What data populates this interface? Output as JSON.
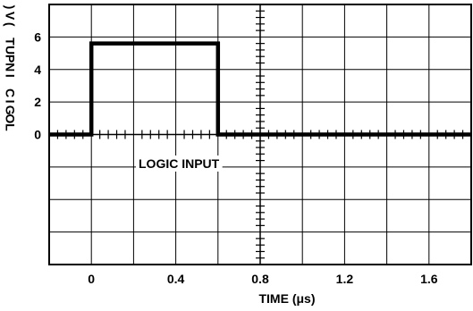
{
  "chart_data": {
    "type": "line",
    "xlabel": "TIME (μs)",
    "ylabel": "LOGIC INPUT (V)",
    "annotation": "LOGIC INPUT",
    "xlim": [
      -0.2,
      1.8
    ],
    "ylim": [
      -8,
      8
    ],
    "x_ticks": [
      {
        "value": 0,
        "label": "0"
      },
      {
        "value": 0.4,
        "label": "0.4"
      },
      {
        "value": 0.8,
        "label": "0.8"
      },
      {
        "value": 1.2,
        "label": "1.2"
      },
      {
        "value": 1.6,
        "label": "1.6"
      }
    ],
    "y_ticks": [
      {
        "value": 0,
        "label": "0"
      },
      {
        "value": 2,
        "label": "2"
      },
      {
        "value": 4,
        "label": "4"
      },
      {
        "value": 6,
        "label": "6"
      }
    ],
    "grid": true,
    "series": [
      {
        "x": [
          -0.2,
          0,
          0,
          0.6,
          0.6,
          1.8
        ],
        "y": [
          0,
          0,
          5.6,
          5.6,
          0,
          0
        ]
      }
    ]
  }
}
